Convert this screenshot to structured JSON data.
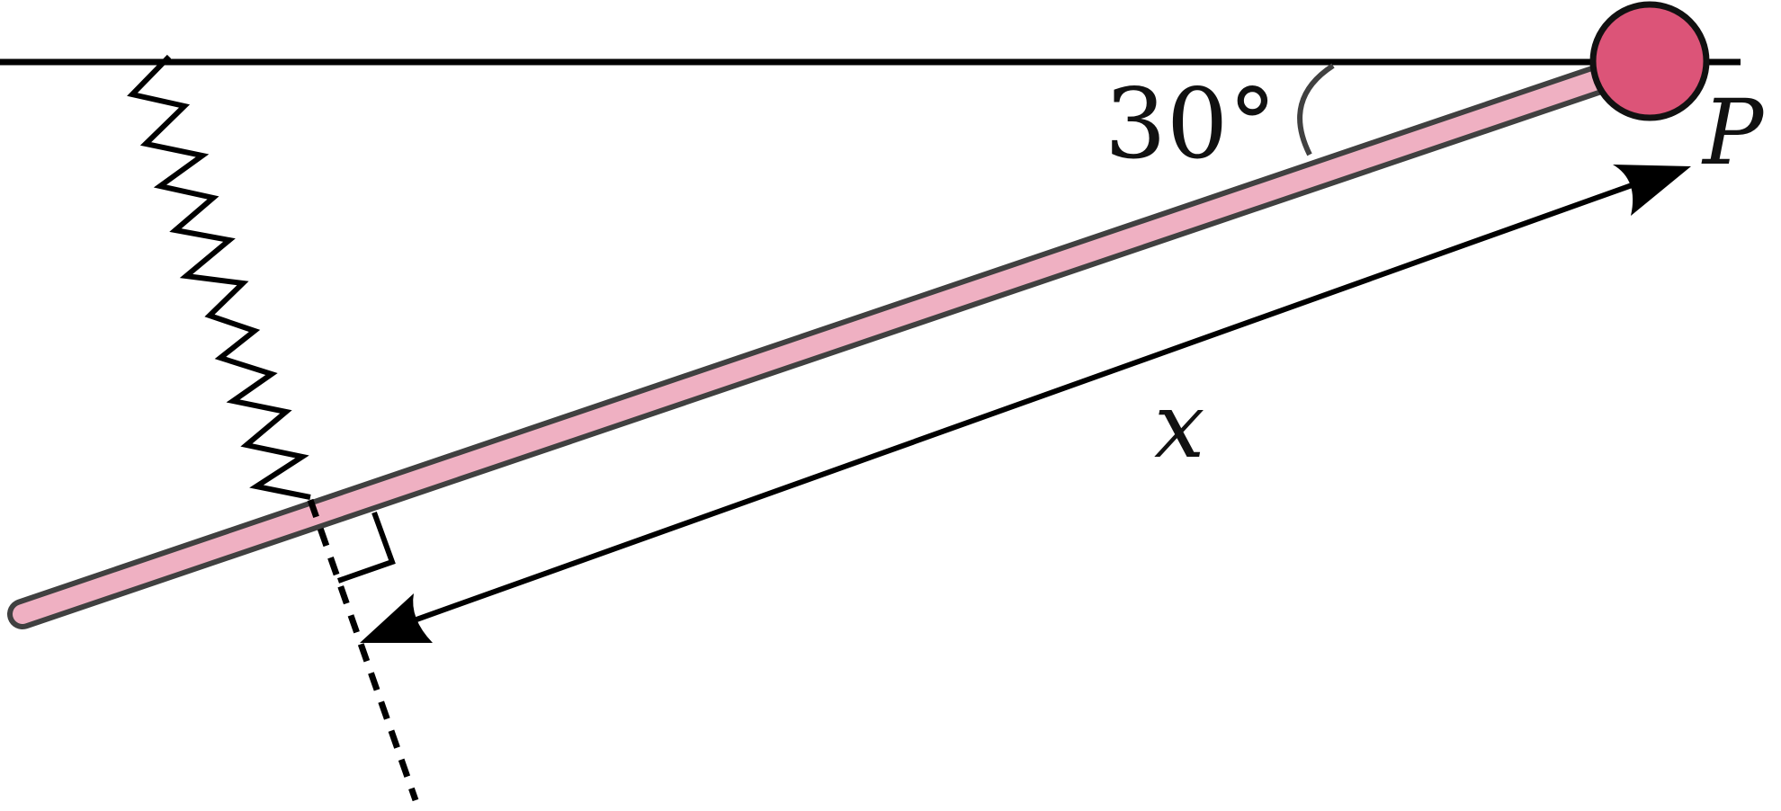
{
  "labels": {
    "angle": "30°",
    "pivot": "P",
    "distance": "x"
  },
  "colors": {
    "rod_fill": "#efb0c2",
    "rod_stroke": "#404040",
    "ball_fill": "#dc5478",
    "ball_stroke": "#111111",
    "line": "#000000"
  }
}
